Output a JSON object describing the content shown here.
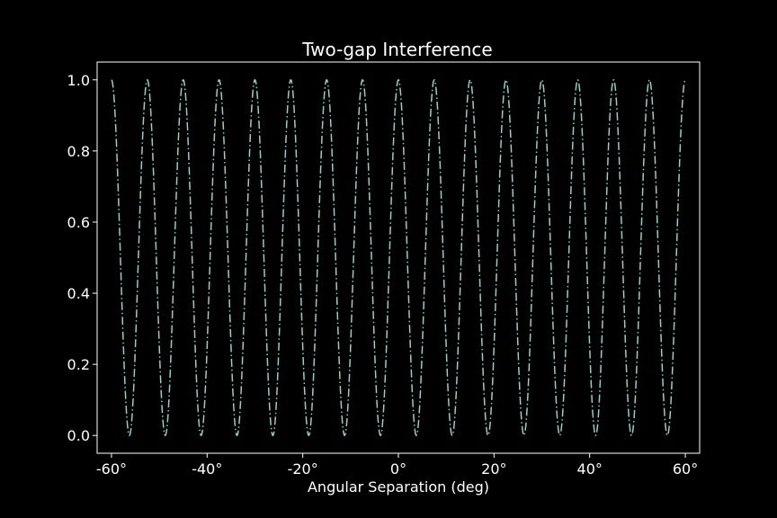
{
  "chart_data": {
    "type": "line",
    "title": "Two-gap Interference",
    "xlabel": "Angular Separation (deg)",
    "ylabel": "",
    "xlim": [
      -63,
      63
    ],
    "ylim": [
      -0.05,
      1.05
    ],
    "x_ticks": [
      -60,
      -40,
      -20,
      0,
      20,
      40,
      60
    ],
    "x_tick_labels": [
      "-60°",
      "-40°",
      "-20°",
      "0°",
      "20°",
      "40°",
      "60°"
    ],
    "y_ticks": [
      0.0,
      0.2,
      0.4,
      0.6,
      0.8,
      1.0
    ],
    "y_tick_labels": [
      "0.0",
      "0.2",
      "0.4",
      "0.6",
      "0.8",
      "1.0"
    ],
    "grid": false,
    "series": [
      {
        "x_range": [
          -60,
          60
        ],
        "peak_x": [
          -60,
          -52.5,
          -45,
          -37.5,
          -30,
          -22.5,
          -15,
          -7.5,
          0,
          7.5,
          15,
          22.5,
          30,
          37.5,
          45,
          52.5,
          60
        ],
        "min_y": 0.0,
        "max_y": 1.0,
        "formula": "cos^2(pi * x / 7.5)",
        "line_style": "dash-dot",
        "color": "#8dd3c7"
      }
    ],
    "colors": {
      "background": "#000000",
      "foreground": "#ffffff"
    }
  }
}
